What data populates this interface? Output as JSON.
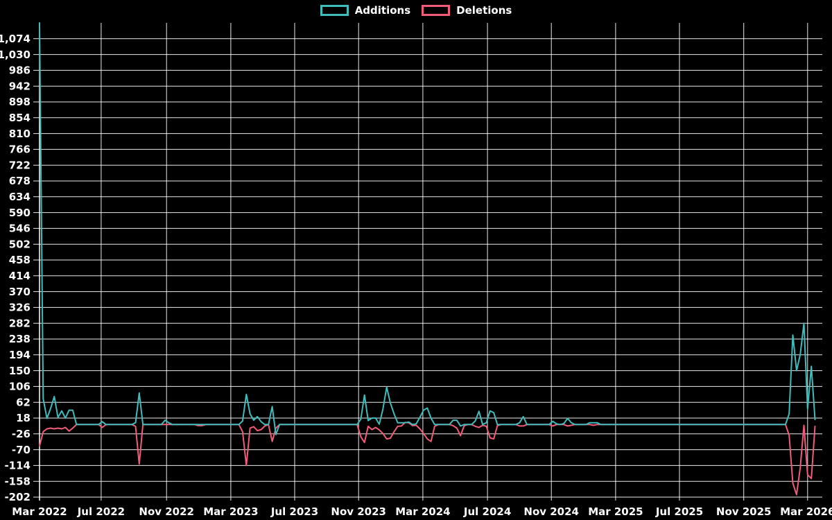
{
  "legend": {
    "items": [
      {
        "label": "Additions",
        "color": "#3fbdbd"
      },
      {
        "label": "Deletions",
        "color": "#f25c78"
      }
    ]
  },
  "colors": {
    "background": "#000000",
    "grid": "#ffffff",
    "text": "#ffffff",
    "additions": "#3fbdbd",
    "deletions": "#f25c78"
  },
  "chart_data": {
    "type": "line",
    "title": "",
    "xlabel": "",
    "ylabel": "",
    "legend_position": "top-center",
    "grid": true,
    "x_tick_labels": [
      "Mar 2022",
      "Jul 2022",
      "Nov 2022",
      "Mar 2023",
      "Jul 2023",
      "Nov 2023",
      "Mar 2024",
      "Jul 2024",
      "Nov 2024",
      "Mar 2025",
      "Jul 2025",
      "Nov 2025",
      "Mar 2026"
    ],
    "x_tick_weeks": [
      0,
      16.7,
      34.4,
      51.8,
      69.1,
      86.4,
      103.8,
      121.3,
      138.6,
      156.0,
      173.3,
      190.7,
      208.0
    ],
    "y_ticks": [
      -202,
      -158,
      -114,
      -70,
      -26,
      18,
      62,
      106,
      150,
      194,
      238,
      282,
      326,
      370,
      414,
      458,
      502,
      546,
      590,
      634,
      678,
      722,
      766,
      810,
      854,
      898,
      942,
      986,
      1030,
      1074
    ],
    "ylim": [
      -202,
      1118
    ],
    "x_unit": "week",
    "n_points": 211,
    "series": [
      {
        "name": "Additions",
        "color": "#3fbdbd",
        "values": [
          1118,
          72,
          17,
          45,
          78,
          20,
          38,
          18,
          40,
          40,
          0,
          0,
          0,
          0,
          0,
          0,
          0,
          8,
          0,
          0,
          0,
          0,
          0,
          0,
          0,
          0,
          5,
          88,
          0,
          0,
          0,
          0,
          0,
          0,
          12,
          5,
          0,
          0,
          0,
          0,
          0,
          0,
          0,
          0,
          0,
          0,
          0,
          0,
          0,
          0,
          0,
          0,
          0,
          0,
          0,
          10,
          84,
          30,
          12,
          22,
          8,
          0,
          0,
          50,
          -28,
          0,
          0,
          0,
          0,
          0,
          0,
          0,
          0,
          0,
          0,
          0,
          0,
          0,
          0,
          0,
          0,
          0,
          0,
          0,
          0,
          0,
          0,
          15,
          82,
          11,
          18,
          18,
          1,
          43,
          104,
          60,
          30,
          5,
          5,
          5,
          7,
          0,
          2,
          20,
          40,
          46,
          18,
          0,
          0,
          0,
          0,
          0,
          12,
          12,
          -4,
          0,
          0,
          0,
          10,
          37,
          0,
          5,
          38,
          33,
          0,
          0,
          0,
          0,
          0,
          0,
          5,
          22,
          0,
          0,
          0,
          0,
          0,
          0,
          0,
          9,
          2,
          0,
          3,
          17,
          5,
          0,
          0,
          0,
          0,
          5,
          5,
          5,
          0,
          0,
          0,
          0,
          0,
          0,
          0,
          0,
          0,
          0,
          0,
          0,
          0,
          0,
          0,
          0,
          0,
          0,
          0,
          0,
          0,
          0,
          0,
          0,
          0,
          0,
          0,
          0,
          0,
          0,
          0,
          0,
          0,
          0,
          0,
          0,
          0,
          0,
          0,
          0,
          0,
          0,
          0,
          0,
          0,
          0,
          0,
          0,
          0,
          0,
          0,
          30,
          249,
          150,
          195,
          282,
          43,
          162,
          14
        ]
      },
      {
        "name": "Deletions",
        "color": "#f25c78",
        "values": [
          -60,
          -20,
          -12,
          -10,
          -12,
          -10,
          -12,
          -8,
          -18,
          -10,
          0,
          0,
          0,
          0,
          0,
          0,
          0,
          -8,
          0,
          0,
          0,
          0,
          0,
          0,
          0,
          0,
          -5,
          -110,
          0,
          0,
          0,
          0,
          0,
          0,
          0,
          0,
          0,
          0,
          0,
          0,
          0,
          0,
          0,
          -3,
          -3,
          0,
          0,
          0,
          0,
          0,
          0,
          0,
          0,
          0,
          0,
          -20,
          -114,
          -10,
          -6,
          -17,
          -14,
          -4,
          0,
          -47,
          -10,
          0,
          0,
          0,
          0,
          0,
          0,
          0,
          0,
          0,
          0,
          0,
          0,
          0,
          0,
          0,
          0,
          0,
          0,
          0,
          0,
          0,
          0,
          -34,
          -50,
          -5,
          -14,
          -8,
          -15,
          -25,
          -40,
          -38,
          -20,
          -5,
          -4,
          6,
          5,
          -3,
          -2,
          -12,
          -25,
          -40,
          -47,
          -5,
          0,
          0,
          0,
          0,
          -3,
          -10,
          -31,
          -3,
          0,
          0,
          -5,
          -8,
          -2,
          -5,
          -37,
          -40,
          -3,
          0,
          0,
          0,
          0,
          0,
          -4,
          -4,
          0,
          0,
          0,
          0,
          0,
          0,
          0,
          -4,
          0,
          0,
          0,
          -4,
          -2,
          0,
          0,
          0,
          0,
          0,
          -2,
          0,
          0,
          0,
          0,
          0,
          0,
          0,
          0,
          0,
          0,
          0,
          0,
          0,
          0,
          0,
          0,
          0,
          0,
          0,
          0,
          0,
          0,
          0,
          0,
          0,
          0,
          0,
          0,
          0,
          0,
          0,
          0,
          0,
          0,
          0,
          0,
          0,
          0,
          0,
          0,
          0,
          0,
          0,
          0,
          0,
          0,
          0,
          0,
          0,
          0,
          0,
          0,
          -30,
          -163,
          -195,
          -120,
          -2,
          -140,
          -150,
          -5
        ]
      }
    ]
  }
}
